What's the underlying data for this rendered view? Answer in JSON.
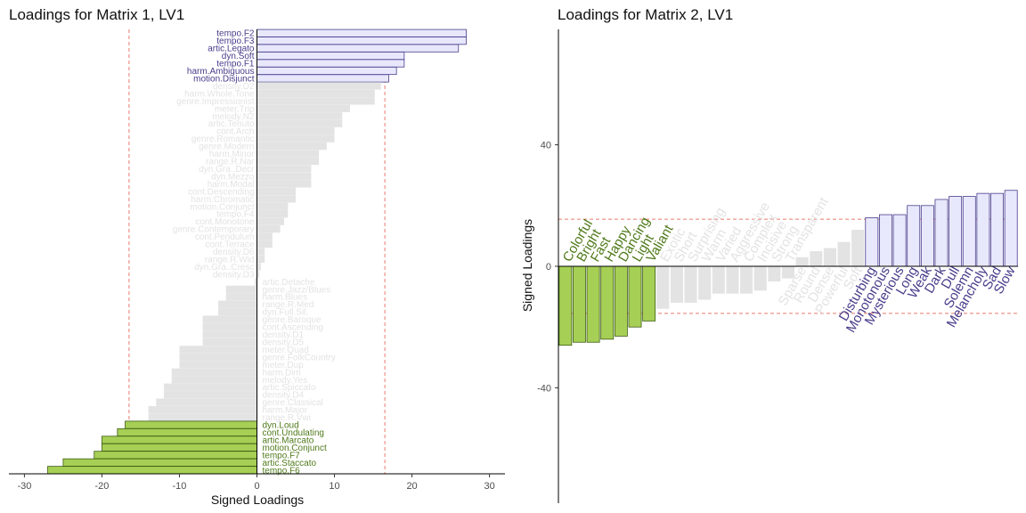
{
  "colors": {
    "positive_fill": "#e8e8fc",
    "positive_stroke": "#483d8b",
    "positive_text": "#483d8b",
    "negative_fill": "#a6cf55",
    "negative_stroke": "#3d5c12",
    "negative_text": "#4f7a1a",
    "neutral_fill": "#e3e3e3",
    "neutral_text": "#e3e3e3",
    "threshold_line": "#e87b6e"
  },
  "chart_data": [
    {
      "type": "bar",
      "orientation": "horizontal",
      "title": "Loadings for Matrix 1, LV1",
      "xlabel": "Signed Loadings",
      "ylabel": "",
      "xlim": [
        -32,
        32
      ],
      "xticks": [
        -30,
        -20,
        -10,
        0,
        10,
        20,
        30
      ],
      "threshold": [
        -16.5,
        16.5
      ],
      "grid": false,
      "bars": [
        {
          "label": "tempo.F2",
          "value": 27,
          "group": "pos"
        },
        {
          "label": "tempo.F3",
          "value": 27,
          "group": "pos"
        },
        {
          "label": "artic.Legato",
          "value": 26,
          "group": "pos"
        },
        {
          "label": "dyn.Soft",
          "value": 19,
          "group": "pos"
        },
        {
          "label": "tempo.F1",
          "value": 19,
          "group": "pos"
        },
        {
          "label": "harm.Ambiguous",
          "value": 18,
          "group": "pos"
        },
        {
          "label": "motion.Disjunct",
          "value": 17,
          "group": "pos"
        },
        {
          "label": "density.D2",
          "value": 16,
          "group": "neutral"
        },
        {
          "label": "harm.Whole.Tone",
          "value": 15.2,
          "group": "neutral"
        },
        {
          "label": "genre.Impressionist",
          "value": 15.2,
          "group": "neutral"
        },
        {
          "label": "meter.Trip",
          "value": 12,
          "group": "neutral"
        },
        {
          "label": "melody.N2",
          "value": 11,
          "group": "neutral"
        },
        {
          "label": "artic.Tenuto",
          "value": 11,
          "group": "neutral"
        },
        {
          "label": "cont.Arch",
          "value": 10,
          "group": "neutral"
        },
        {
          "label": "genre.Romantic",
          "value": 10,
          "group": "neutral"
        },
        {
          "label": "genre.Modern",
          "value": 9,
          "group": "neutral"
        },
        {
          "label": "harm.Minor",
          "value": 8,
          "group": "neutral"
        },
        {
          "label": "range.R.Nar",
          "value": 8,
          "group": "neutral"
        },
        {
          "label": "dyn.Gra..Decr",
          "value": 7,
          "group": "neutral"
        },
        {
          "label": "dyn.Mezzo",
          "value": 7,
          "group": "neutral"
        },
        {
          "label": "harm.Modal",
          "value": 7,
          "group": "neutral"
        },
        {
          "label": "cont.Descending",
          "value": 5,
          "group": "neutral"
        },
        {
          "label": "harm.Chromatic",
          "value": 5,
          "group": "neutral"
        },
        {
          "label": "motion.Conjunct",
          "value": 4,
          "group": "neutral"
        },
        {
          "label": "tempo.F4",
          "value": 4,
          "group": "neutral"
        },
        {
          "label": "cont.Monotone",
          "value": 3.5,
          "group": "neutral"
        },
        {
          "label": "genre.Contemporary",
          "value": 3,
          "group": "neutral"
        },
        {
          "label": "cont.Pendulum",
          "value": 2,
          "group": "neutral"
        },
        {
          "label": "cont.Terrace",
          "value": 2,
          "group": "neutral"
        },
        {
          "label": "density.D6",
          "value": 1,
          "group": "neutral"
        },
        {
          "label": "range.R.Wid",
          "value": 1,
          "group": "neutral"
        },
        {
          "label": "dyn.Gra..Cresc",
          "value": 0.5,
          "group": "neutral"
        },
        {
          "label": "density.D3",
          "value": 0.3,
          "group": "neutral"
        },
        {
          "label": "artic.Detache",
          "value": -0.3,
          "group": "neutral"
        },
        {
          "label": "genre.Jazz/Blues",
          "value": -4,
          "group": "neutral"
        },
        {
          "label": "harm.Blues",
          "value": -4,
          "group": "neutral"
        },
        {
          "label": "range.R.Med",
          "value": -5,
          "group": "neutral"
        },
        {
          "label": "dyn.Full.Sil.",
          "value": -5,
          "group": "neutral"
        },
        {
          "label": "genre.Baroque",
          "value": -7,
          "group": "neutral"
        },
        {
          "label": "cont.Ascending",
          "value": -7,
          "group": "neutral"
        },
        {
          "label": "density.D1",
          "value": -7,
          "group": "neutral"
        },
        {
          "label": "density.D5",
          "value": -7,
          "group": "neutral"
        },
        {
          "label": "meter.Quad",
          "value": -10,
          "group": "neutral"
        },
        {
          "label": "genre.FolkCountry",
          "value": -10,
          "group": "neutral"
        },
        {
          "label": "meter.Dup",
          "value": -10,
          "group": "neutral"
        },
        {
          "label": "harm.Dim",
          "value": -11,
          "group": "neutral"
        },
        {
          "label": "melody.Yes",
          "value": -11,
          "group": "neutral"
        },
        {
          "label": "artic.Spiccato",
          "value": -12,
          "group": "neutral"
        },
        {
          "label": "density.D4",
          "value": -12,
          "group": "neutral"
        },
        {
          "label": "genre.Classical",
          "value": -13,
          "group": "neutral"
        },
        {
          "label": "harm.Major",
          "value": -14,
          "group": "neutral"
        },
        {
          "label": "range.R.Vwi",
          "value": -14,
          "group": "neutral"
        },
        {
          "label": "dyn.Loud",
          "value": -17,
          "group": "neg"
        },
        {
          "label": "cont.Undulating",
          "value": -18,
          "group": "neg"
        },
        {
          "label": "artic.Marcato",
          "value": -20,
          "group": "neg"
        },
        {
          "label": "motion.Conjunct",
          "value": -20,
          "group": "neg"
        },
        {
          "label": "tempo.F7",
          "value": -21,
          "group": "neg"
        },
        {
          "label": "artic.Staccato",
          "value": -25,
          "group": "neg"
        },
        {
          "label": "tempo.F6",
          "value": -27,
          "group": "neg"
        }
      ]
    },
    {
      "type": "bar",
      "orientation": "vertical",
      "title": "Loadings for Matrix 2, LV1",
      "xlabel": "",
      "ylabel": "Signed Loadings",
      "ylim": [
        -78,
        78
      ],
      "yticks": [
        -40,
        0,
        40
      ],
      "threshold": [
        -15.5,
        15.5
      ],
      "grid": false,
      "bars": [
        {
          "label": "Colorful",
          "value": -26,
          "group": "neg"
        },
        {
          "label": "Bright",
          "value": -25,
          "group": "neg"
        },
        {
          "label": "Fast",
          "value": -25,
          "group": "neg"
        },
        {
          "label": "Happy",
          "value": -24,
          "group": "neg"
        },
        {
          "label": "Dancing",
          "value": -23,
          "group": "neg"
        },
        {
          "label": "Light",
          "value": -20,
          "group": "neg"
        },
        {
          "label": "Valiant",
          "value": -18,
          "group": "neg"
        },
        {
          "label": "Exotic",
          "value": -14,
          "group": "neutral"
        },
        {
          "label": "Short",
          "value": -12,
          "group": "neutral"
        },
        {
          "label": "Surprising",
          "value": -12,
          "group": "neutral"
        },
        {
          "label": "Warm",
          "value": -11,
          "group": "neutral"
        },
        {
          "label": "Varied",
          "value": -9,
          "group": "neutral"
        },
        {
          "label": "Aggressive",
          "value": -9,
          "group": "neutral"
        },
        {
          "label": "Complex",
          "value": -9,
          "group": "neutral"
        },
        {
          "label": "Incisive",
          "value": -8,
          "group": "neutral"
        },
        {
          "label": "Strong",
          "value": -5,
          "group": "neutral"
        },
        {
          "label": "Transparent",
          "value": -4,
          "group": "neutral"
        },
        {
          "label": "Sparse",
          "value": 3,
          "group": "neutral"
        },
        {
          "label": "Round",
          "value": 5,
          "group": "neutral"
        },
        {
          "label": "Dense",
          "value": 6,
          "group": "neutral"
        },
        {
          "label": "Powerful",
          "value": 8,
          "group": "neutral"
        },
        {
          "label": "Soft",
          "value": 12,
          "group": "neutral"
        },
        {
          "label": "Disturbing",
          "value": 16,
          "group": "pos"
        },
        {
          "label": "Monotonous",
          "value": 17,
          "group": "pos"
        },
        {
          "label": "Mysterious",
          "value": 17,
          "group": "pos"
        },
        {
          "label": "Long",
          "value": 20,
          "group": "pos"
        },
        {
          "label": "Weak",
          "value": 20,
          "group": "pos"
        },
        {
          "label": "Dark",
          "value": 22,
          "group": "pos"
        },
        {
          "label": "Dull",
          "value": 23,
          "group": "pos"
        },
        {
          "label": "Solemn",
          "value": 23,
          "group": "pos"
        },
        {
          "label": "Melancholy",
          "value": 24,
          "group": "pos"
        },
        {
          "label": "Sad",
          "value": 24,
          "group": "pos"
        },
        {
          "label": "Slow",
          "value": 25,
          "group": "pos"
        }
      ]
    }
  ]
}
